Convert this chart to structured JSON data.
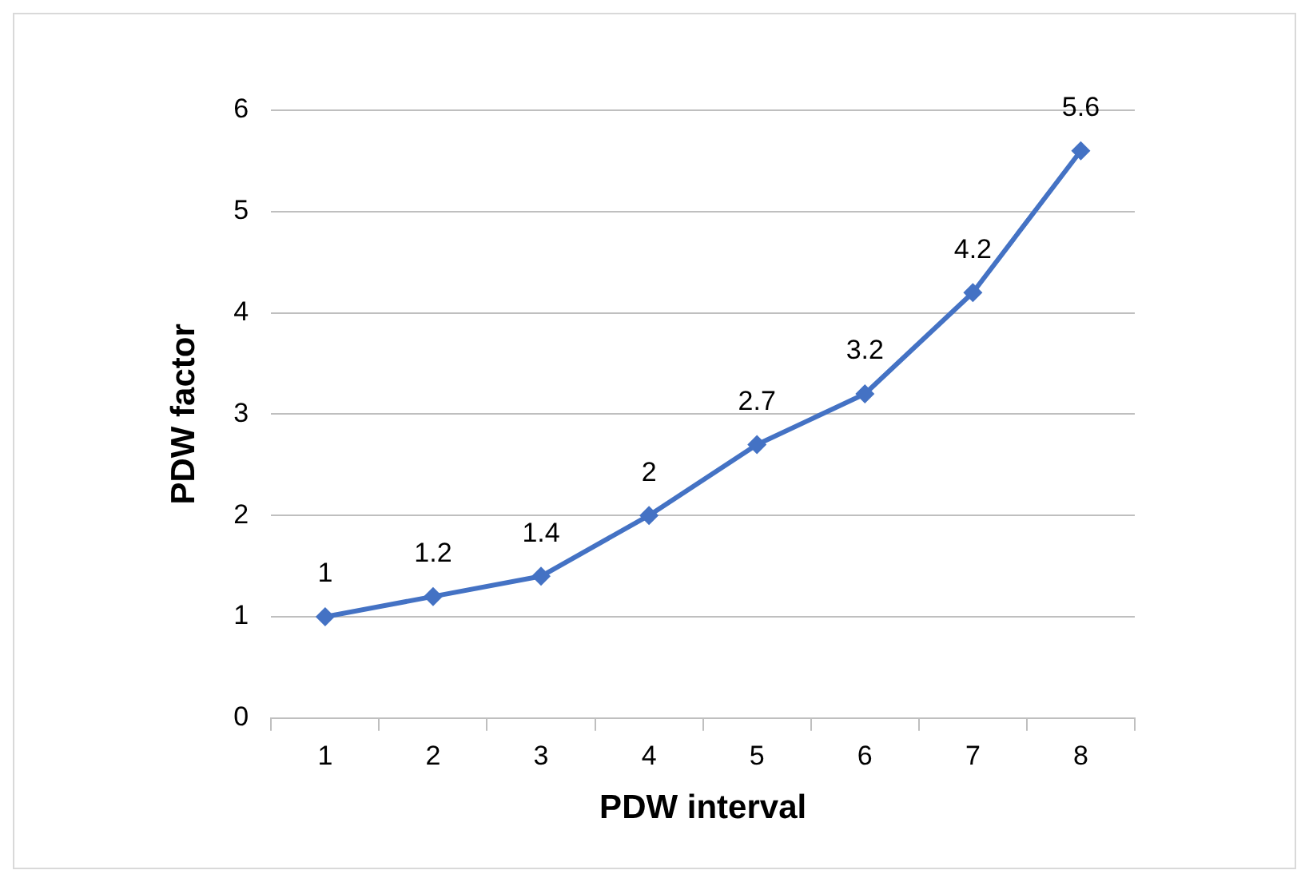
{
  "chart_data": {
    "type": "line",
    "xlabel": "PDW interval",
    "ylabel": "PDW factor",
    "categories": [
      "1",
      "2",
      "3",
      "4",
      "5",
      "6",
      "7",
      "8"
    ],
    "series": [
      {
        "color": "#4472c4",
        "values": [
          1,
          1.2,
          1.4,
          2,
          2.7,
          3.2,
          4.2,
          5.6
        ]
      }
    ],
    "ylim": [
      0,
      6
    ],
    "yticks": [
      0,
      1,
      2,
      3,
      4,
      5,
      6
    ],
    "grid": "y",
    "legend": false,
    "marker": "diamond",
    "line_style": "solid",
    "data_labels": true
  }
}
